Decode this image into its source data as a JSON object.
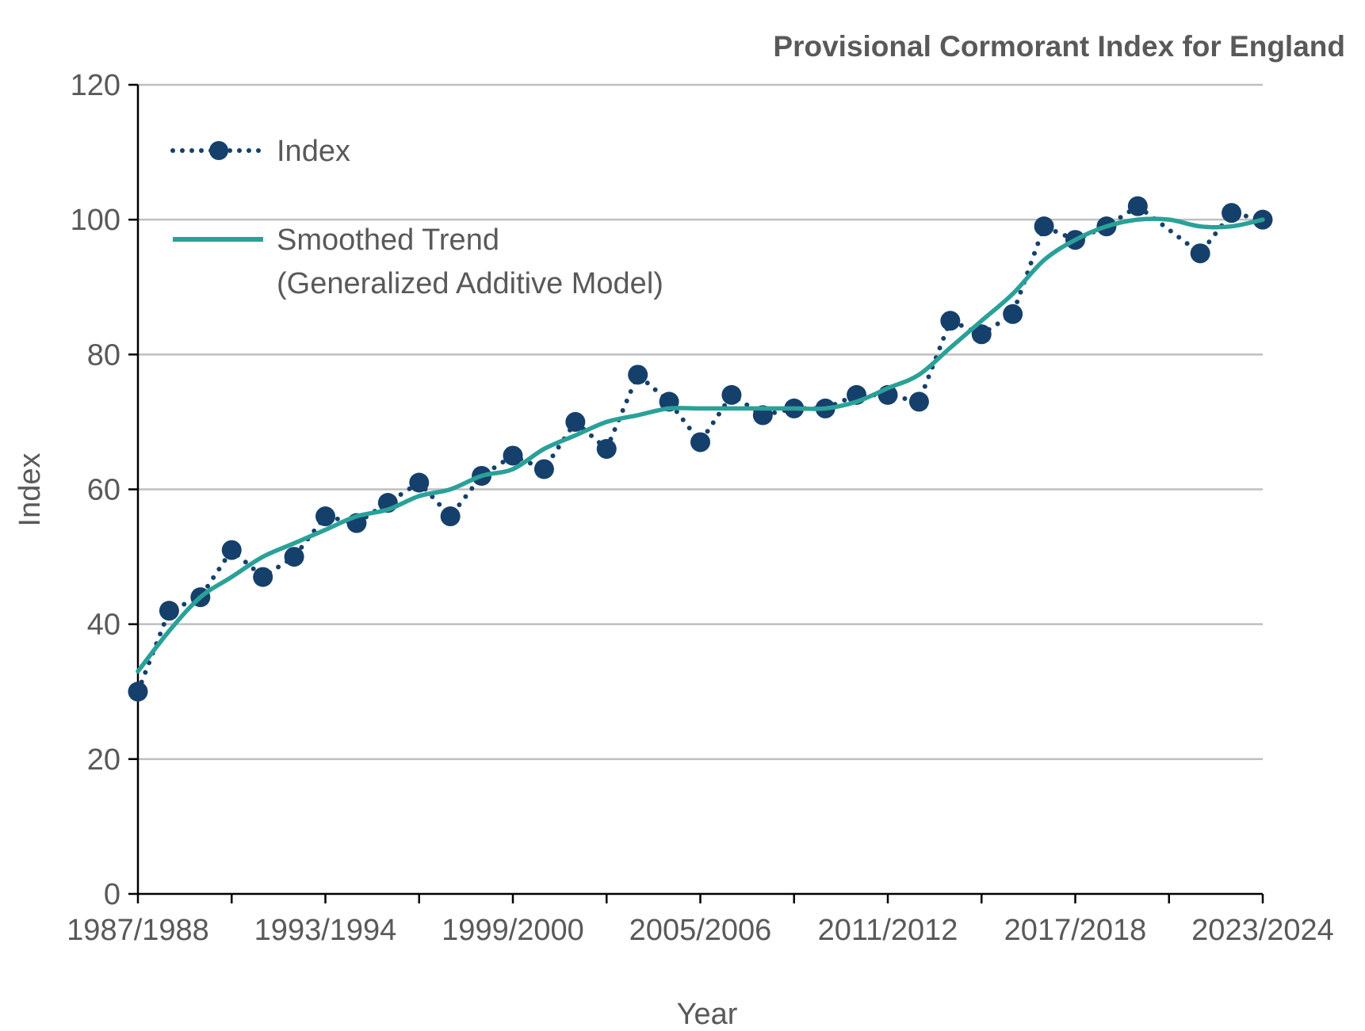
{
  "chart_data": {
    "type": "line",
    "title": "Provisional Cormorant Index for England",
    "xlabel": "Year",
    "ylabel": "Index",
    "ylim": [
      0,
      120
    ],
    "yticks": [
      0,
      20,
      40,
      60,
      80,
      100,
      120
    ],
    "grid": true,
    "legend_placement": "top-left",
    "x": [
      "1987/1988",
      "1988/1989",
      "1989/1990",
      "1990/1991",
      "1991/1992",
      "1992/1993",
      "1993/1994",
      "1994/1995",
      "1995/1996",
      "1996/1997",
      "1997/1998",
      "1998/1999",
      "1999/2000",
      "2000/2001",
      "2001/2002",
      "2002/2003",
      "2003/2004",
      "2004/2005",
      "2005/2006",
      "2006/2007",
      "2007/2008",
      "2008/2009",
      "2009/2010",
      "2010/2011",
      "2011/2012",
      "2012/2013",
      "2013/2014",
      "2014/2015",
      "2015/2016",
      "2016/2017",
      "2017/2018",
      "2018/2019",
      "2019/2020",
      "2020/2021",
      "2021/2022",
      "2022/2023",
      "2023/2024"
    ],
    "xtick_labels": [
      "1987/1988",
      "1993/1994",
      "1999/2000",
      "2005/2006",
      "2011/2012",
      "2017/2018",
      "2023/2024"
    ],
    "series": [
      {
        "name": "Index",
        "style": "dotted-markers",
        "color": "#15406b",
        "values": [
          30,
          42,
          44,
          51,
          47,
          50,
          56,
          55,
          58,
          61,
          56,
          62,
          65,
          63,
          70,
          66,
          77,
          73,
          67,
          74,
          71,
          72,
          72,
          74,
          74,
          73,
          85,
          83,
          86,
          99,
          97,
          99,
          102,
          null,
          95,
          101,
          100
        ]
      },
      {
        "name": "Smoothed Trend",
        "name_line2": "(Generalized Additive Model)",
        "style": "solid",
        "color": "#2aa198",
        "values": [
          33,
          39,
          44,
          47,
          50,
          52,
          54,
          56,
          57,
          59,
          60,
          62,
          63,
          66,
          68,
          70,
          71,
          72,
          72,
          72,
          72,
          72,
          72,
          73,
          75,
          77,
          81,
          85,
          89,
          94,
          97,
          99,
          100,
          100,
          99,
          99,
          100
        ]
      }
    ]
  }
}
